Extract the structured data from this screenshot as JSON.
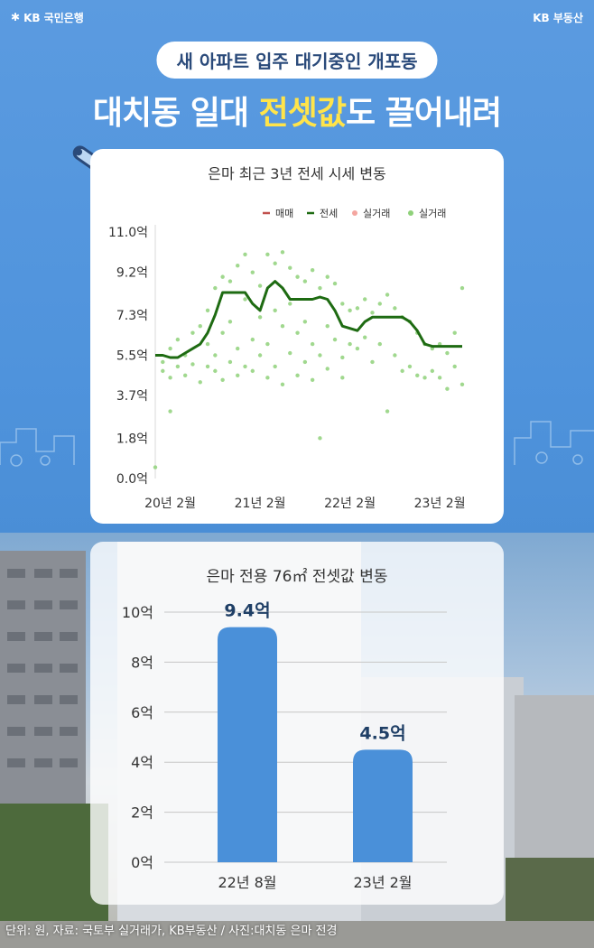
{
  "brand_left": "KB 국민은행",
  "brand_right": "KB 부동산",
  "subtitle": "새 아파트 입주 대기중인 개포동",
  "headline": {
    "part1": "대치동 일대 ",
    "highlight": "전셋값",
    "part2": "도 끌어내려"
  },
  "colors": {
    "background": "#4a8fd6",
    "highlight": "#ffe44a",
    "jeonse_line": "#1e6b12",
    "jeonse_dots": "#8fd17a",
    "maemae": "#c0504d",
    "silgeorae": "#f4a6a0",
    "bar": "#4a90d9",
    "bar_label": "#1f3f66"
  },
  "chart_data": [
    {
      "type": "line",
      "title": "은마 최근 3년 전세 시세 변동",
      "y_tick_labels": [
        "11.0억",
        "9.2억",
        "7.3억",
        "5.5억",
        "3.7억",
        "1.8억",
        "0.0억"
      ],
      "y_ticks": [
        11.0,
        9.2,
        7.3,
        5.5,
        3.7,
        1.8,
        0.0
      ],
      "ylim": [
        0,
        11.0
      ],
      "x_tick_labels": [
        "20년 2월",
        "21년 2월",
        "22년 2월",
        "23년 2월"
      ],
      "x_ticks": [
        "2020-02",
        "2021-02",
        "2022-02",
        "2023-02"
      ],
      "xlim": [
        "2019-12",
        "2023-05"
      ],
      "legend": [
        "매매",
        "전세",
        "실거래",
        "실거래"
      ],
      "legend_position": "top-right",
      "grid": false,
      "series": [
        {
          "name": "전세",
          "x": [
            "2019-12",
            "2020-01",
            "2020-02",
            "2020-03",
            "2020-04",
            "2020-05",
            "2020-06",
            "2020-07",
            "2020-08",
            "2020-09",
            "2020-10",
            "2020-11",
            "2020-12",
            "2021-01",
            "2021-02",
            "2021-03",
            "2021-04",
            "2021-05",
            "2021-06",
            "2021-07",
            "2021-08",
            "2021-09",
            "2021-10",
            "2021-11",
            "2021-12",
            "2022-01",
            "2022-02",
            "2022-03",
            "2022-04",
            "2022-05",
            "2022-06",
            "2022-07",
            "2022-08",
            "2022-09",
            "2022-10",
            "2022-11",
            "2022-12",
            "2023-01",
            "2023-02",
            "2023-03",
            "2023-04",
            "2023-05"
          ],
          "values": [
            5.5,
            5.5,
            5.4,
            5.4,
            5.6,
            5.8,
            6.0,
            6.5,
            7.3,
            8.3,
            8.3,
            8.3,
            8.3,
            7.8,
            7.5,
            8.5,
            8.8,
            8.5,
            8.0,
            8.0,
            8.0,
            8.0,
            8.1,
            8.0,
            7.5,
            6.8,
            6.7,
            6.6,
            7.0,
            7.2,
            7.2,
            7.2,
            7.2,
            7.2,
            7.0,
            6.6,
            6.0,
            5.9,
            5.9,
            5.9,
            5.9,
            5.9
          ]
        },
        {
          "name": "실거래",
          "note": "points",
          "points": [
            [
              "2020-01",
              5.2
            ],
            [
              "2020-01",
              4.8
            ],
            [
              "2020-02",
              5.8
            ],
            [
              "2020-02",
              4.5
            ],
            [
              "2020-02",
              3.0
            ],
            [
              "2020-03",
              5.0
            ],
            [
              "2020-03",
              6.2
            ],
            [
              "2020-04",
              5.5
            ],
            [
              "2020-04",
              4.6
            ],
            [
              "2020-05",
              6.5
            ],
            [
              "2020-05",
              5.1
            ],
            [
              "2020-06",
              6.8
            ],
            [
              "2020-06",
              4.3
            ],
            [
              "2020-07",
              7.5
            ],
            [
              "2020-07",
              5.0
            ],
            [
              "2020-07",
              6.0
            ],
            [
              "2020-08",
              8.5
            ],
            [
              "2020-08",
              4.8
            ],
            [
              "2020-08",
              5.5
            ],
            [
              "2020-09",
              9.0
            ],
            [
              "2020-09",
              6.5
            ],
            [
              "2020-09",
              4.4
            ],
            [
              "2020-10",
              8.8
            ],
            [
              "2020-10",
              5.2
            ],
            [
              "2020-10",
              7.0
            ],
            [
              "2020-11",
              9.5
            ],
            [
              "2020-11",
              5.8
            ],
            [
              "2020-11",
              4.6
            ],
            [
              "2020-12",
              10.0
            ],
            [
              "2020-12",
              8.0
            ],
            [
              "2020-12",
              5.0
            ],
            [
              "2021-01",
              9.2
            ],
            [
              "2021-01",
              6.2
            ],
            [
              "2021-01",
              4.8
            ],
            [
              "2021-02",
              8.6
            ],
            [
              "2021-02",
              5.5
            ],
            [
              "2021-02",
              7.2
            ],
            [
              "2021-03",
              10.0
            ],
            [
              "2021-03",
              6.0
            ],
            [
              "2021-03",
              4.5
            ],
            [
              "2021-04",
              9.6
            ],
            [
              "2021-04",
              7.5
            ],
            [
              "2021-04",
              5.0
            ],
            [
              "2021-05",
              10.1
            ],
            [
              "2021-05",
              6.8
            ],
            [
              "2021-05",
              4.2
            ],
            [
              "2021-06",
              9.4
            ],
            [
              "2021-06",
              5.6
            ],
            [
              "2021-06",
              7.8
            ],
            [
              "2021-07",
              9.0
            ],
            [
              "2021-07",
              6.5
            ],
            [
              "2021-07",
              4.6
            ],
            [
              "2021-08",
              8.8
            ],
            [
              "2021-08",
              5.2
            ],
            [
              "2021-08",
              7.0
            ],
            [
              "2021-09",
              9.3
            ],
            [
              "2021-09",
              6.0
            ],
            [
              "2021-09",
              4.4
            ],
            [
              "2021-10",
              8.5
            ],
            [
              "2021-10",
              1.8
            ],
            [
              "2021-10",
              5.5
            ],
            [
              "2021-11",
              9.0
            ],
            [
              "2021-11",
              6.8
            ],
            [
              "2021-11",
              4.9
            ],
            [
              "2021-12",
              8.7
            ],
            [
              "2021-12",
              6.2
            ],
            [
              "2022-01",
              7.8
            ],
            [
              "2022-01",
              5.4
            ],
            [
              "2022-01",
              4.5
            ],
            [
              "2022-02",
              7.5
            ],
            [
              "2022-02",
              6.0
            ],
            [
              "2022-03",
              7.6
            ],
            [
              "2022-03",
              5.8
            ],
            [
              "2022-04",
              8.0
            ],
            [
              "2022-04",
              6.3
            ],
            [
              "2022-05",
              7.4
            ],
            [
              "2022-05",
              5.2
            ],
            [
              "2022-06",
              7.8
            ],
            [
              "2022-06",
              6.0
            ],
            [
              "2022-07",
              8.2
            ],
            [
              "2022-07",
              3.0
            ],
            [
              "2022-08",
              7.6
            ],
            [
              "2022-08",
              5.5
            ],
            [
              "2022-09",
              7.2
            ],
            [
              "2022-09",
              4.8
            ],
            [
              "2022-10",
              7.0
            ],
            [
              "2022-10",
              5.0
            ],
            [
              "2022-11",
              6.5
            ],
            [
              "2022-11",
              4.6
            ],
            [
              "2022-12",
              6.0
            ],
            [
              "2022-12",
              4.5
            ],
            [
              "2023-01",
              5.8
            ],
            [
              "2023-01",
              4.8
            ],
            [
              "2023-02",
              6.0
            ],
            [
              "2023-02",
              4.5
            ],
            [
              "2023-03",
              5.6
            ],
            [
              "2023-03",
              4.0
            ],
            [
              "2023-04",
              6.5
            ],
            [
              "2023-04",
              5.0
            ],
            [
              "2023-05",
              8.5
            ],
            [
              "2023-05",
              4.2
            ]
          ]
        },
        {
          "name": "실거래",
          "note": "outlier",
          "points": [
            [
              "2019-12",
              0.5
            ]
          ]
        }
      ]
    },
    {
      "type": "bar",
      "title": "은마 전용 76㎡ 전셋값 변동",
      "categories": [
        "22년 8월",
        "23년 2월"
      ],
      "values": [
        9.4,
        4.5
      ],
      "data_labels": [
        "9.4억",
        "4.5억"
      ],
      "y_tick_labels": [
        "10억",
        "8억",
        "6억",
        "4억",
        "2억",
        "0억"
      ],
      "y_ticks": [
        10,
        8,
        6,
        4,
        2,
        0
      ],
      "ylim": [
        0,
        10
      ],
      "grid": true
    }
  ],
  "footer": "단위: 원, 자료: 국토부 실거래가, KB부동산 / 사진:대치동 은마 전경"
}
